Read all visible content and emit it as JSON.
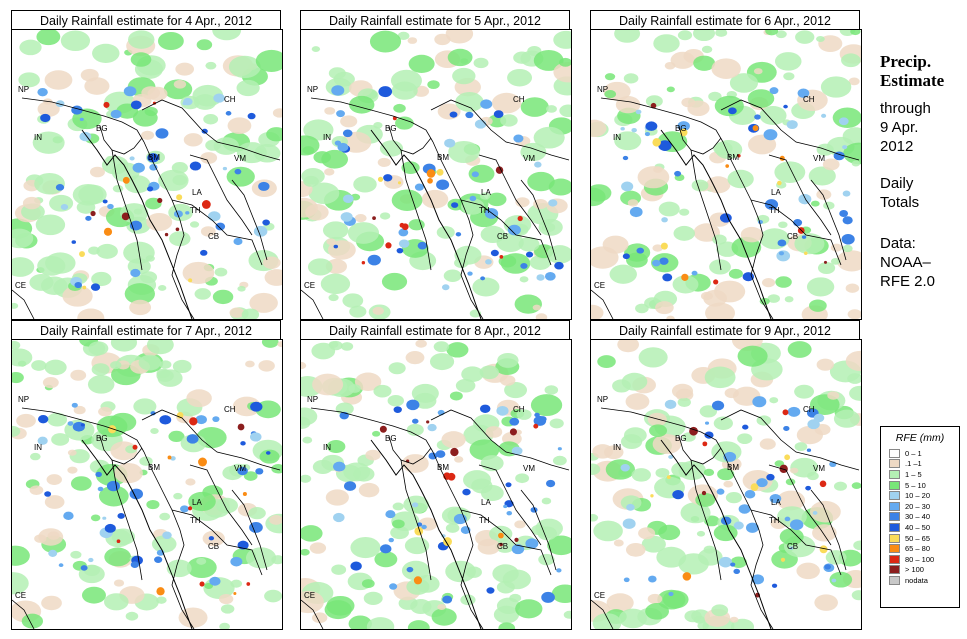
{
  "panels": [
    {
      "title": "Daily Rainfall estimate for  4 Apr., 2012",
      "seed": 4
    },
    {
      "title": "Daily Rainfall estimate for  5 Apr., 2012",
      "seed": 5
    },
    {
      "title": "Daily Rainfall estimate for  6 Apr., 2012",
      "seed": 6
    },
    {
      "title": "Daily Rainfall estimate for  7 Apr., 2012",
      "seed": 7
    },
    {
      "title": "Daily Rainfall estimate for  8 Apr., 2012",
      "seed": 8
    },
    {
      "title": "Daily Rainfall estimate for  9 Apr., 2012",
      "seed": 9
    }
  ],
  "country_labels": [
    "NP",
    "IN",
    "BG",
    "BM",
    "CH",
    "VM",
    "LA",
    "TH",
    "CB",
    "CE"
  ],
  "side": {
    "title_line1": "Precip.",
    "title_line2": "Estimate",
    "through": "through",
    "date_line1": "9 Apr.",
    "date_line2": "2012",
    "daily_line1": "Daily",
    "daily_line2": "Totals",
    "data_line1": "Data:",
    "data_line2": "NOAA–",
    "data_line3": "RFE 2.0"
  },
  "legend": {
    "title": "RFE (mm)",
    "items": [
      {
        "label": "0 – 1",
        "color": "#ffffff"
      },
      {
        "label": ".1 –1",
        "color": "#eed9c4"
      },
      {
        "label": "1 – 5",
        "color": "#b4f0b4"
      },
      {
        "label": "5 – 10",
        "color": "#78e678"
      },
      {
        "label": "10 – 20",
        "color": "#a0d2f0"
      },
      {
        "label": "20 – 30",
        "color": "#64aaf0"
      },
      {
        "label": "30 – 40",
        "color": "#3c82e6"
      },
      {
        "label": "40 – 50",
        "color": "#1e5adc"
      },
      {
        "label": "50 – 65",
        "color": "#fadc5a"
      },
      {
        "label": "65 – 80",
        "color": "#fa8c14"
      },
      {
        "label": "80 – 100",
        "color": "#dc2814"
      },
      {
        "label": "> 100",
        "color": "#8c1e1e"
      },
      {
        "label": "nodata",
        "color": "#c8c8c8"
      }
    ]
  }
}
